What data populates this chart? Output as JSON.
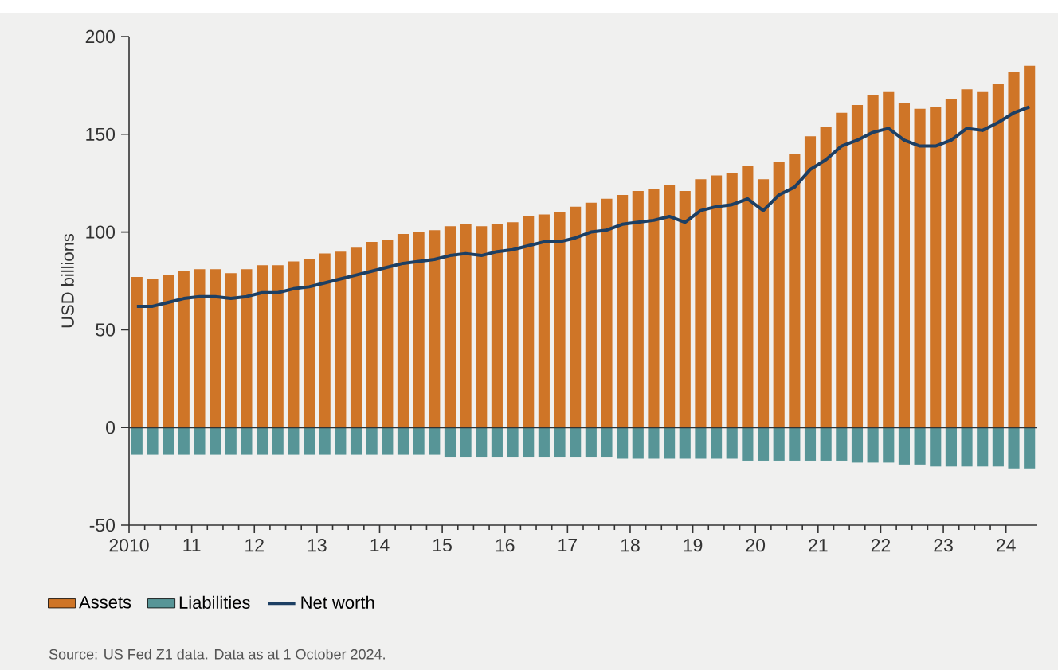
{
  "chart_data": {
    "type": "bar",
    "ylabel": "USD billions",
    "x": [
      2010.125,
      2010.375,
      2010.625,
      2010.875,
      2011.125,
      2011.375,
      2011.625,
      2011.875,
      2012.125,
      2012.375,
      2012.625,
      2012.875,
      2013.125,
      2013.375,
      2013.625,
      2013.875,
      2014.125,
      2014.375,
      2014.625,
      2014.875,
      2015.125,
      2015.375,
      2015.625,
      2015.875,
      2016.125,
      2016.375,
      2016.625,
      2016.875,
      2017.125,
      2017.375,
      2017.625,
      2017.875,
      2018.125,
      2018.375,
      2018.625,
      2018.875,
      2019.125,
      2019.375,
      2019.625,
      2019.875,
      2020.125,
      2020.375,
      2020.625,
      2020.875,
      2021.125,
      2021.375,
      2021.625,
      2021.875,
      2022.125,
      2022.375,
      2022.625,
      2022.875,
      2023.125,
      2023.375,
      2023.625,
      2023.875,
      2024.125,
      2024.375
    ],
    "series": [
      {
        "name": "Assets",
        "color": "#cf7527",
        "values": [
          77,
          76,
          78,
          80,
          81,
          81,
          79,
          81,
          83,
          83,
          85,
          86,
          89,
          90,
          92,
          95,
          96,
          99,
          100,
          101,
          103,
          104,
          103,
          104,
          105,
          108,
          109,
          110,
          113,
          115,
          117,
          119,
          121,
          122,
          124,
          121,
          127,
          129,
          130,
          134,
          127,
          136,
          140,
          149,
          154,
          161,
          165,
          170,
          172,
          166,
          163,
          164,
          168,
          173,
          172,
          176,
          182,
          185
        ]
      },
      {
        "name": "Liabilities",
        "color": "#579597",
        "values": [
          -14,
          -14,
          -14,
          -14,
          -14,
          -14,
          -14,
          -14,
          -14,
          -14,
          -14,
          -14,
          -14,
          -14,
          -14,
          -14,
          -14,
          -14,
          -14,
          -14,
          -15,
          -15,
          -15,
          -15,
          -15,
          -15,
          -15,
          -15,
          -15,
          -15,
          -15,
          -16,
          -16,
          -16,
          -16,
          -16,
          -16,
          -16,
          -16,
          -17,
          -17,
          -17,
          -17,
          -17,
          -17,
          -17,
          -18,
          -18,
          -18,
          -19,
          -19,
          -20,
          -20,
          -20,
          -20,
          -20,
          -21,
          -21
        ]
      },
      {
        "name": "Net worth",
        "type": "line",
        "color": "#1d3f63",
        "values": [
          62,
          62,
          64,
          66,
          67,
          67,
          66,
          67,
          69,
          69,
          71,
          72,
          74,
          76,
          78,
          80,
          82,
          84,
          85,
          86,
          88,
          89,
          88,
          90,
          91,
          93,
          95,
          95,
          97,
          100,
          101,
          104,
          105,
          106,
          108,
          105,
          111,
          113,
          114,
          117,
          111,
          119,
          123,
          132,
          137,
          144,
          147,
          151,
          153,
          147,
          144,
          144,
          147,
          153,
          152,
          156,
          161,
          164
        ]
      }
    ],
    "stacked": true,
    "xlim": [
      2010,
      2024.5
    ],
    "xticks": [
      2010,
      {
        "value": 2011,
        "label": "11"
      },
      {
        "value": 2012,
        "label": "12"
      },
      {
        "value": 2013,
        "label": "13"
      },
      {
        "value": 2014,
        "label": "14"
      },
      {
        "value": 2015,
        "label": "15"
      },
      {
        "value": 2016,
        "label": "16"
      },
      {
        "value": 2017,
        "label": "17"
      },
      {
        "value": 2018,
        "label": "18"
      },
      {
        "value": 2019,
        "label": "19"
      },
      {
        "value": 2020,
        "label": "20"
      },
      {
        "value": 2021,
        "label": "21"
      },
      {
        "value": 2022,
        "label": "22"
      },
      {
        "value": 2023,
        "label": "23"
      },
      {
        "value": 2024,
        "label": "24"
      }
    ],
    "ylim": [
      -50,
      200
    ],
    "yticks": [
      -50,
      0,
      50,
      100,
      150,
      200
    ],
    "ref_lines": [
      {
        "axis": "y",
        "value": 0,
        "color": "#333333"
      }
    ],
    "grid": false,
    "legend": "bottom left",
    "marker": "none",
    "line_style": "solid",
    "annotations": [
      "Source: US Fed Z1 data. Data as at 1 October 2024."
    ]
  }
}
